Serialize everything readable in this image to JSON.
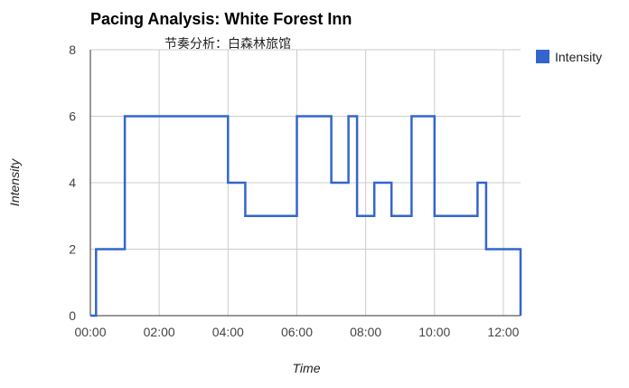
{
  "chart_data": {
    "type": "line",
    "title": "Pacing Analysis: White Forest Inn",
    "subtitle": "节奏分析：白森林旅馆",
    "xlabel": "Time",
    "ylabel": "Intensity",
    "xlim": [
      "00:00",
      "12:30"
    ],
    "ylim": [
      0,
      8
    ],
    "x_ticks": [
      "00:00",
      "02:00",
      "04:00",
      "06:00",
      "08:00",
      "10:00",
      "12:00"
    ],
    "y_ticks": [
      "0",
      "2",
      "4",
      "6",
      "8"
    ],
    "grid": true,
    "legend_position": "right",
    "colors": {
      "series": "#3366cc",
      "grid": "#cccccc",
      "axis": "#333333"
    },
    "series": [
      {
        "name": "Intensity",
        "step": true,
        "points": [
          [
            "00:00",
            0
          ],
          [
            "00:10",
            2
          ],
          [
            "01:00",
            6
          ],
          [
            "04:00",
            4
          ],
          [
            "04:30",
            3
          ],
          [
            "06:00",
            6
          ],
          [
            "07:00",
            4
          ],
          [
            "07:30",
            6
          ],
          [
            "07:45",
            3
          ],
          [
            "08:15",
            4
          ],
          [
            "08:45",
            3
          ],
          [
            "09:20",
            6
          ],
          [
            "10:00",
            3
          ],
          [
            "11:15",
            4
          ],
          [
            "11:30",
            2
          ],
          [
            "12:30",
            0
          ]
        ]
      }
    ]
  }
}
